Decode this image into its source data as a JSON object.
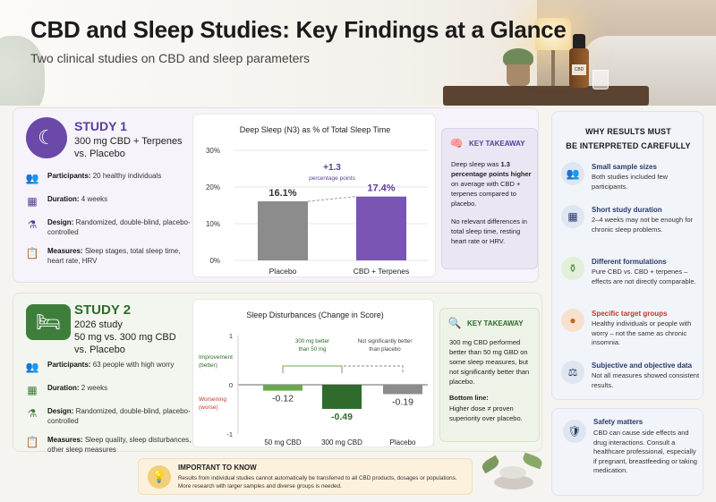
{
  "header": {
    "title": "CBD and Sleep Studies: Key Findings at a Glance",
    "subtitle": "Two clinical studies on CBD and sleep parameters",
    "bottle_label": "CBD"
  },
  "study1": {
    "name": "STUDY 1",
    "desc_line1": "300 mg CBD + Terpenes",
    "desc_line2": "vs. Placebo",
    "facts": [
      {
        "label": "Participants:",
        "text": "20 healthy individuals",
        "icon": "people-icon"
      },
      {
        "label": "Duration:",
        "text": "4 weeks",
        "icon": "calendar-icon"
      },
      {
        "label": "Design:",
        "text": "Randomized, double-blind, placebo-controlled",
        "icon": "flask-icon"
      },
      {
        "label": "Measures:",
        "text": "Sleep stages, total sleep time, heart rate, HRV",
        "icon": "clipboard-icon"
      }
    ],
    "takeaway": {
      "heading": "KEY TAKEAWAY",
      "p1_a": "Deep sleep was",
      "p1_b": "1.3 percentage points higher",
      "p1_c": "on average with CBD + terpenes compared to placebo.",
      "p2": "No relevant differences in total sleep time, resting heart rate or HRV."
    }
  },
  "study2": {
    "name": "STUDY 2",
    "desc_line1": "2026 study",
    "desc_line2": "50 mg vs. 300 mg CBD",
    "desc_line3": "vs. Placebo",
    "facts": [
      {
        "label": "Participants:",
        "text": "63 people with high worry",
        "icon": "people-icon"
      },
      {
        "label": "Duration:",
        "text": "2 weeks",
        "icon": "calendar-icon"
      },
      {
        "label": "Design:",
        "text": "Randomized, double-blind, placebo-controlled",
        "icon": "flask-icon"
      },
      {
        "label": "Measures:",
        "text": "Sleep quality, sleep disturbances, other sleep measures",
        "icon": "clipboard-icon"
      }
    ],
    "takeaway": {
      "heading": "KEY TAKEAWAY",
      "p1": "300 mg CBD performed better than 50 mg GBD on some sleep measures, but not significantly better than placebo.",
      "bottom_head": "Bottom line:",
      "bottom": "Higher dose ≠ proven superiority over placebo."
    }
  },
  "chart_data": [
    {
      "type": "bar",
      "title": "Deep Sleep (N3) as % of Total Sleep Time",
      "categories": [
        "Placebo",
        "CBD + Terpenes"
      ],
      "values": [
        16.1,
        17.4
      ],
      "value_labels": [
        "16.1%",
        "17.4%"
      ],
      "yticks": [
        "0%",
        "10%",
        "20%",
        "30%"
      ],
      "ylim": [
        0,
        30
      ],
      "annotation": {
        "value": "+1.3",
        "text": "percentage points"
      },
      "colors": [
        "#8c8c8c",
        "#7a55b3"
      ]
    },
    {
      "type": "bar",
      "title": "Sleep Disturbances (Change in Score)",
      "categories": [
        "50 mg CBD",
        "300 mg CBD",
        "Placebo"
      ],
      "values": [
        -0.12,
        -0.49,
        -0.19
      ],
      "value_labels": [
        "-0.12",
        "-0.49",
        "-0.19"
      ],
      "yticks": [
        "1",
        "0",
        "-1"
      ],
      "ylim": [
        -1,
        1
      ],
      "improvement_label": "Improvement (better)",
      "worsening_label": "Worsening (worse)",
      "annotation1": "300 mg better than 50 mg",
      "annotation2": "Not significantly better than placebo",
      "colors": [
        "#6aa84f",
        "#2e6b2c",
        "#8c8c8c"
      ]
    }
  ],
  "why": {
    "title_line1": "WHY RESULTS MUST",
    "title_line2": "BE INTERPRETED CAREFULLY",
    "items": [
      {
        "heading": "Small sample sizes",
        "text": "Both studies included few participants.",
        "icon": "group-icon",
        "color": "#dfe6f2"
      },
      {
        "heading": "Short study duration",
        "text": "2–4 weeks may not be enough for chronic sleep problems.",
        "icon": "calendar-icon",
        "color": "#dfe6f2"
      },
      {
        "heading": "Different formulations",
        "text": "Pure CBD vs. CBD + terpenes – effects are not directly comparable.",
        "icon": "bottle-icon",
        "color": "#e3efd9"
      },
      {
        "heading": "Specific target groups",
        "text": "Healthy individuals or people with worry – not the same as chronic insomnia.",
        "icon": "person-icon",
        "color": "#f8e1cc"
      },
      {
        "heading": "Subjective and objective data",
        "text": "Not all measures showed consistent results.",
        "icon": "scales-icon",
        "color": "#dfe6f2"
      }
    ]
  },
  "safety": {
    "heading": "Safety matters",
    "text": "CBD can cause side effects and drug interactions. Consult a healthcare professional, especially if pregnant, breastfeeding or taking medication."
  },
  "important": {
    "heading": "IMPORTANT TO KNOW",
    "text": "Results from individual studies cannot automatically be transferred to all CBD products, dosages or populations. More research with larger samples and diverse groups is needed."
  }
}
